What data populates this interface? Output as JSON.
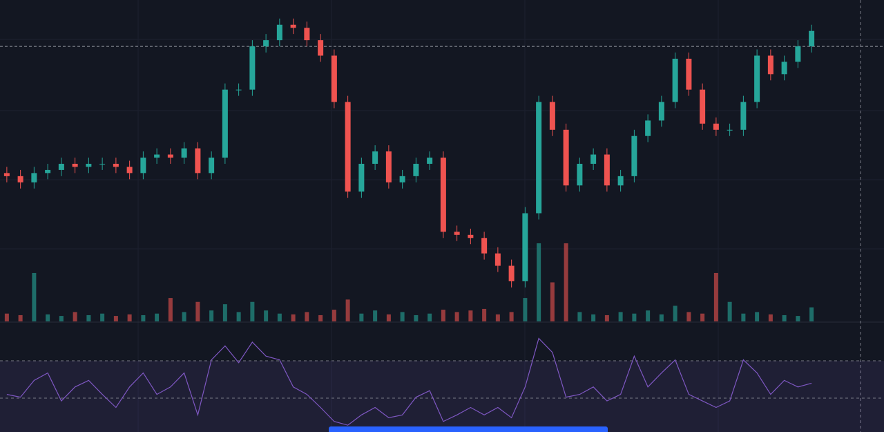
{
  "chart_data": {
    "type": "candlestick",
    "open": [
      48,
      47,
      45,
      48,
      49,
      51,
      50,
      51,
      51,
      50,
      48,
      53,
      54,
      53,
      56,
      48,
      53,
      75,
      75,
      89,
      91,
      96,
      95,
      91,
      86,
      71,
      42,
      51,
      55,
      45,
      47,
      51,
      53,
      29,
      28,
      27,
      22,
      18,
      13,
      35,
      71,
      62,
      44,
      51,
      54,
      44,
      47,
      60,
      65,
      71,
      85,
      75,
      64,
      62,
      62,
      71,
      86,
      80,
      84,
      89
    ],
    "high": [
      50,
      49,
      50,
      51,
      53,
      53,
      53,
      53,
      53,
      52,
      55,
      56,
      56,
      58,
      58,
      55,
      77,
      77,
      91,
      93,
      98,
      98,
      97,
      93,
      88,
      73,
      53,
      57,
      57,
      49,
      53,
      55,
      55,
      31,
      30,
      29,
      24,
      20,
      37,
      73,
      73,
      64,
      53,
      56,
      56,
      49,
      62,
      67,
      73,
      87,
      87,
      77,
      66,
      64,
      73,
      88,
      88,
      86,
      91,
      96
    ],
    "low": [
      45,
      43,
      43,
      46,
      47,
      48,
      48,
      49,
      48,
      46,
      46,
      51,
      51,
      51,
      46,
      46,
      51,
      73,
      73,
      87,
      89,
      93,
      89,
      84,
      69,
      40,
      40,
      49,
      43,
      43,
      45,
      49,
      27,
      26,
      25,
      20,
      16,
      11,
      11,
      33,
      60,
      42,
      42,
      49,
      42,
      42,
      45,
      58,
      63,
      69,
      73,
      62,
      60,
      60,
      60,
      69,
      78,
      78,
      82,
      87
    ],
    "close": [
      47,
      45,
      48,
      49,
      51,
      50,
      51,
      51,
      50,
      48,
      53,
      54,
      53,
      56,
      48,
      53,
      75,
      75,
      89,
      91,
      96,
      95,
      91,
      86,
      71,
      42,
      51,
      55,
      45,
      47,
      51,
      53,
      29,
      28,
      27,
      22,
      18,
      13,
      35,
      71,
      62,
      44,
      51,
      54,
      44,
      47,
      60,
      65,
      71,
      85,
      75,
      64,
      62,
      62,
      71,
      86,
      80,
      84,
      89,
      94
    ],
    "ylim": [
      0,
      104
    ],
    "price_line": 89,
    "up_color": "#26a69a",
    "down_color": "#ef5350",
    "volume": [
      10,
      8,
      62,
      9,
      7,
      12,
      8,
      10,
      7,
      9,
      8,
      10,
      30,
      12,
      25,
      14,
      22,
      12,
      25,
      14,
      10,
      9,
      12,
      8,
      15,
      28,
      10,
      14,
      9,
      12,
      8,
      10,
      15,
      12,
      14,
      16,
      9,
      12,
      30,
      100,
      50,
      100,
      12,
      9,
      8,
      12,
      10,
      14,
      9,
      20,
      12,
      10,
      62,
      25,
      10,
      12,
      9,
      8,
      7,
      18
    ],
    "y2lim": [
      0,
      100
    ],
    "rsi": [
      34,
      31,
      49,
      57,
      27,
      42,
      49,
      34,
      20,
      42,
      57,
      34,
      42,
      57,
      12,
      71,
      86,
      68,
      90,
      75,
      71,
      42,
      34,
      20,
      5,
      1,
      12,
      20,
      9,
      12,
      31,
      38,
      5,
      12,
      20,
      12,
      20,
      9,
      42,
      94,
      79,
      31,
      34,
      42,
      27,
      34,
      75,
      42,
      57,
      71,
      34,
      27,
      20,
      27,
      71,
      57,
      34,
      49,
      42,
      46
    ],
    "rsi_ylim": [
      0,
      100
    ],
    "rsi_levels": [
      70,
      30
    ],
    "rsi_color": "#7e57c2"
  }
}
